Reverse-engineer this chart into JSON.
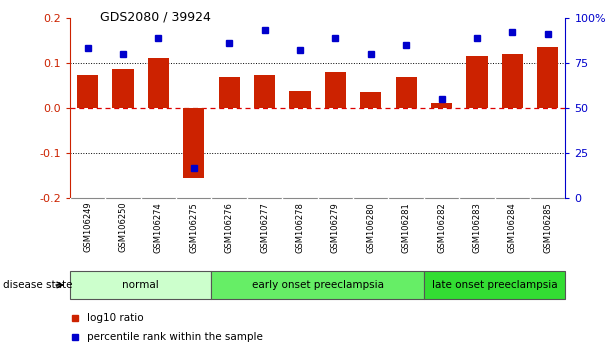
{
  "title": "GDS2080 / 39924",
  "samples": [
    "GSM106249",
    "GSM106250",
    "GSM106274",
    "GSM106275",
    "GSM106276",
    "GSM106277",
    "GSM106278",
    "GSM106279",
    "GSM106280",
    "GSM106281",
    "GSM106282",
    "GSM106283",
    "GSM106284",
    "GSM106285"
  ],
  "log10_ratio": [
    0.072,
    0.087,
    0.11,
    -0.155,
    0.068,
    0.073,
    0.038,
    0.08,
    0.035,
    0.068,
    0.01,
    0.115,
    0.12,
    0.135
  ],
  "percentile_rank": [
    83,
    80,
    89,
    17,
    86,
    93,
    82,
    89,
    80,
    85,
    55,
    89,
    92,
    91
  ],
  "bar_color": "#cc2200",
  "dot_color": "#0000cc",
  "ylim_left": [
    -0.2,
    0.2
  ],
  "ylim_right": [
    0,
    100
  ],
  "yticks_left": [
    -0.2,
    -0.1,
    0.0,
    0.1,
    0.2
  ],
  "yticks_right": [
    0,
    25,
    50,
    75,
    100
  ],
  "ytick_labels_right": [
    "0",
    "25",
    "50",
    "75",
    "100%"
  ],
  "groups": [
    {
      "label": "normal",
      "start": 0,
      "end": 3,
      "color": "#ccffcc"
    },
    {
      "label": "early onset preeclampsia",
      "start": 4,
      "end": 9,
      "color": "#66ee66"
    },
    {
      "label": "late onset preeclampsia",
      "start": 10,
      "end": 13,
      "color": "#33dd33"
    }
  ],
  "legend_bar_label": "log10 ratio",
  "legend_dot_label": "percentile rank within the sample",
  "disease_state_label": "disease state",
  "hline_color_zero": "#dd0000",
  "hline_color_dotted": "#000000",
  "background_samples": "#cccccc"
}
